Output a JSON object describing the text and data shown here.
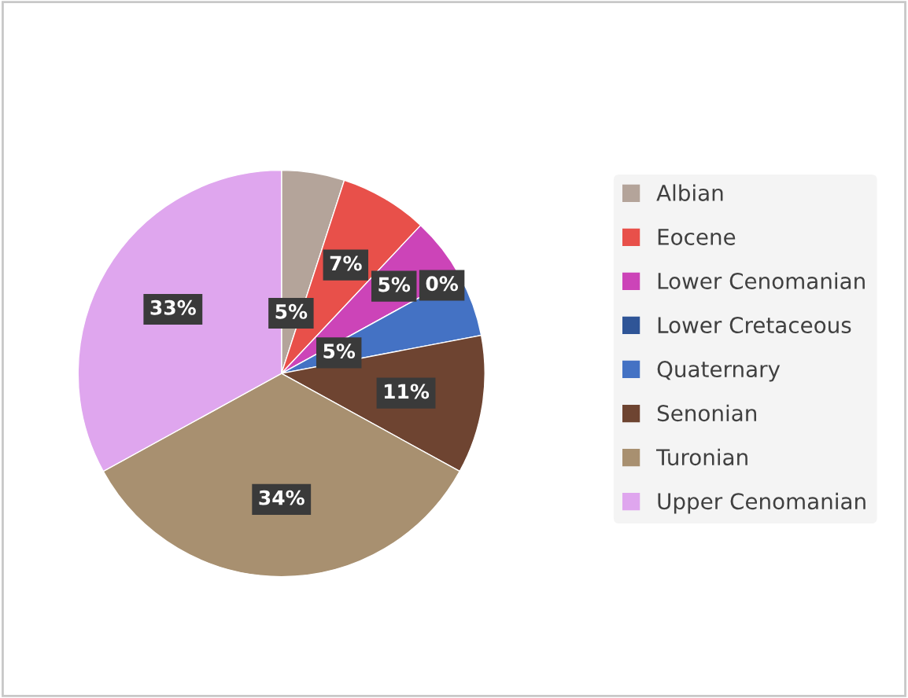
{
  "chart_data": {
    "type": "pie",
    "categories": [
      "Albian",
      "Eocene",
      "Lower Cenomanian",
      "Lower Cretaceous",
      "Quaternary",
      "Senonian",
      "Turonian",
      "Upper Cenomanian"
    ],
    "values": [
      5,
      7,
      5,
      0,
      5,
      11,
      34,
      33
    ],
    "value_labels": [
      "5%",
      "7%",
      "5%",
      "0%",
      "5%",
      "11%",
      "34%",
      "33%"
    ],
    "colors": [
      "#b4a49a",
      "#e8504a",
      "#cc44b8",
      "#2f5597",
      "#4472c4",
      "#6e4431",
      "#a89070",
      "#dfa6ee"
    ],
    "legend": "right"
  }
}
